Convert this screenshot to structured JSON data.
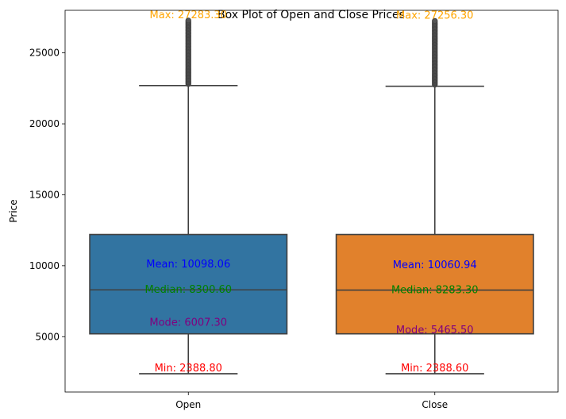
{
  "chart_data": {
    "type": "box",
    "title": "Box Plot of Open and Close Prices",
    "xlabel": "",
    "ylabel": "Price",
    "ylim": [
      1100,
      28000
    ],
    "yticks": [
      5000,
      10000,
      15000,
      20000,
      25000
    ],
    "yticklabels": [
      "5000",
      "10000",
      "15000",
      "20000",
      "25000"
    ],
    "categories": [
      "Open",
      "Close"
    ],
    "grid": false,
    "boxes": [
      {
        "category": "Open",
        "color": "#3274a1",
        "whisker_low": 2388.8,
        "q1": 5200,
        "median": 8300.6,
        "q3": 12200,
        "whisker_high": 22700,
        "outlier_range": [
          22800,
          27283.3
        ],
        "annotations": {
          "max": "Max: 27283.30",
          "mean": "Mean: 10098.06",
          "median": "Median: 8300.60",
          "mode": "Mode: 6007.30",
          "min": "Min: 2388.80"
        },
        "annotation_values": {
          "max": 27283.3,
          "mean": 10098.06,
          "median": 8300.6,
          "mode": 6007.3,
          "min": 2388.8
        }
      },
      {
        "category": "Close",
        "color": "#e1812c",
        "whisker_low": 2388.6,
        "q1": 5200,
        "median": 8283.3,
        "q3": 12200,
        "whisker_high": 22650,
        "outlier_range": [
          22750,
          27256.3
        ],
        "annotations": {
          "max": "Max: 27256.30",
          "mean": "Mean: 10060.94",
          "median": "Median: 8283.30",
          "mode": "Mode: 5465.50",
          "min": "Min: 2388.60"
        },
        "annotation_values": {
          "max": 27256.3,
          "mean": 10060.94,
          "median": 8283.3,
          "mode": 5465.5,
          "min": 2388.6
        }
      }
    ],
    "annotation_colors": {
      "max": "#ffa500",
      "mean": "#0000ff",
      "median": "#008000",
      "mode": "#800080",
      "min": "#ff0000"
    }
  }
}
